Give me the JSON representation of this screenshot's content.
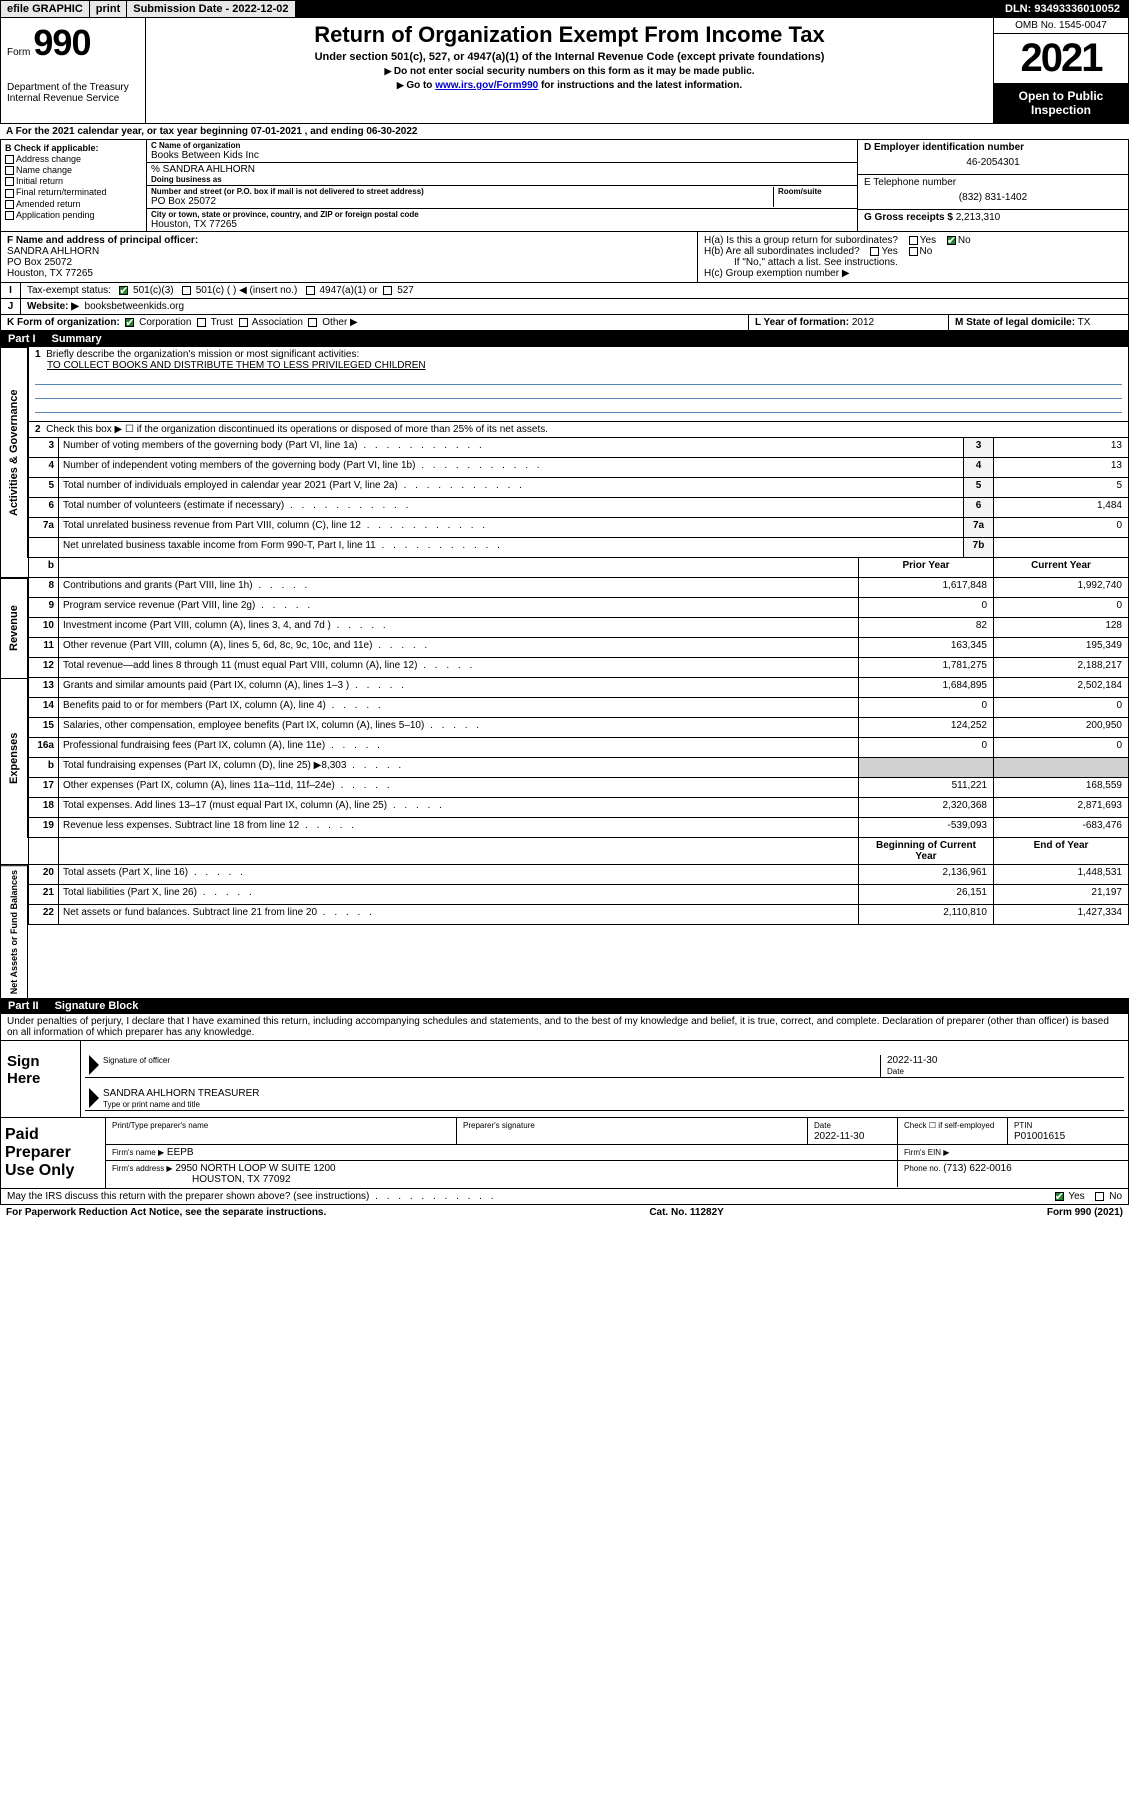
{
  "topbar": {
    "efile": "efile GRAPHIC",
    "print": "print",
    "sub_date_label": "Submission Date - 2022-12-02",
    "dln_label": "DLN: 93493336010052"
  },
  "header": {
    "form_label": "Form",
    "form_number": "990",
    "title": "Return of Organization Exempt From Income Tax",
    "subtitle": "Under section 501(c), 527, or 4947(a)(1) of the Internal Revenue Code (except private foundations)",
    "note1": "Do not enter social security numbers on this form as it may be made public.",
    "note2_pre": "Go to ",
    "note2_link": "www.irs.gov/Form990",
    "note2_post": " for instructions and the latest information.",
    "omb": "OMB No. 1545-0047",
    "year": "2021",
    "open_pub": "Open to Public Inspection",
    "dept": "Department of the Treasury Internal Revenue Service"
  },
  "line_a": "For the 2021 calendar year, or tax year beginning 07-01-2021   , and ending 06-30-2022",
  "section_b": {
    "label": "B Check if applicable:",
    "opts": [
      "Address change",
      "Name change",
      "Initial return",
      "Final return/terminated",
      "Amended return",
      "Application pending"
    ]
  },
  "section_c": {
    "name_label": "C Name of organization",
    "name": "Books Between Kids Inc",
    "care_of": "% SANDRA AHLHORN",
    "dba_label": "Doing business as",
    "addr_label": "Number and street (or P.O. box if mail is not delivered to street address)",
    "room_label": "Room/suite",
    "addr": "PO Box 25072",
    "city_label": "City or town, state or province, country, and ZIP or foreign postal code",
    "city": "Houston, TX  77265"
  },
  "section_d": {
    "ein_label": "D Employer identification number",
    "ein": "46-2054301",
    "phone_label": "E Telephone number",
    "phone": "(832) 831-1402",
    "gross_label": "G Gross receipts $",
    "gross": "2,213,310"
  },
  "section_f": {
    "label": "F  Name and address of principal officer:",
    "name": "SANDRA AHLHORN",
    "addr1": "PO Box 25072",
    "addr2": "Houston, TX  77265"
  },
  "section_h": {
    "ha": "H(a)  Is this a group return for subordinates?",
    "hb": "H(b)  Are all subordinates included?",
    "hb_note": "If \"No,\" attach a list. See instructions.",
    "hc": "H(c)  Group exemption number ▶"
  },
  "section_i": {
    "label": "I",
    "text": "Tax-exempt status:",
    "opts": [
      "501(c)(3)",
      "501(c) (  ) ◀ (insert no.)",
      "4947(a)(1) or",
      "527"
    ]
  },
  "section_j": {
    "label": "J",
    "text": "Website: ▶",
    "value": "booksbetweenkids.org"
  },
  "section_k": {
    "label": "K Form of organization:",
    "opts": [
      "Corporation",
      "Trust",
      "Association",
      "Other ▶"
    ]
  },
  "section_l": {
    "label": "L Year of formation:",
    "value": "2012"
  },
  "section_m": {
    "label": "M State of legal domicile:",
    "value": "TX"
  },
  "part1": {
    "title": "Part I",
    "name": "Summary",
    "line1_label": "1",
    "line1_text": "Briefly describe the organization's mission or most significant activities:",
    "mission": "TO COLLECT BOOKS AND DISTRIBUTE THEM TO LESS PRIVILEGED CHILDREN",
    "line2_label": "2",
    "line2_text": "Check this box ▶ ☐  if the organization discontinued its operations or disposed of more than 25% of its net assets."
  },
  "group_labels": {
    "gov": "Activities & Governance",
    "rev": "Revenue",
    "exp": "Expenses",
    "net": "Net Assets or Fund Balances"
  },
  "gov_lines": [
    {
      "num": "3",
      "desc": "Number of voting members of the governing body (Part VI, line 1a)",
      "box": "3",
      "val": "13"
    },
    {
      "num": "4",
      "desc": "Number of independent voting members of the governing body (Part VI, line 1b)",
      "box": "4",
      "val": "13"
    },
    {
      "num": "5",
      "desc": "Total number of individuals employed in calendar year 2021 (Part V, line 2a)",
      "box": "5",
      "val": "5"
    },
    {
      "num": "6",
      "desc": "Total number of volunteers (estimate if necessary)",
      "box": "6",
      "val": "1,484"
    },
    {
      "num": "7a",
      "desc": "Total unrelated business revenue from Part VIII, column (C), line 12",
      "box": "7a",
      "val": "0"
    },
    {
      "num": "",
      "desc": "Net unrelated business taxable income from Form 990-T, Part I, line 11",
      "box": "7b",
      "val": ""
    }
  ],
  "col_headers": {
    "num": "b",
    "prior": "Prior Year",
    "current": "Current Year"
  },
  "rev_lines": [
    {
      "num": "8",
      "desc": "Contributions and grants (Part VIII, line 1h)",
      "prior": "1,617,848",
      "cur": "1,992,740"
    },
    {
      "num": "9",
      "desc": "Program service revenue (Part VIII, line 2g)",
      "prior": "0",
      "cur": "0"
    },
    {
      "num": "10",
      "desc": "Investment income (Part VIII, column (A), lines 3, 4, and 7d )",
      "prior": "82",
      "cur": "128"
    },
    {
      "num": "11",
      "desc": "Other revenue (Part VIII, column (A), lines 5, 6d, 8c, 9c, 10c, and 11e)",
      "prior": "163,345",
      "cur": "195,349"
    },
    {
      "num": "12",
      "desc": "Total revenue—add lines 8 through 11 (must equal Part VIII, column (A), line 12)",
      "prior": "1,781,275",
      "cur": "2,188,217"
    }
  ],
  "exp_lines": [
    {
      "num": "13",
      "desc": "Grants and similar amounts paid (Part IX, column (A), lines 1–3 )",
      "prior": "1,684,895",
      "cur": "2,502,184"
    },
    {
      "num": "14",
      "desc": "Benefits paid to or for members (Part IX, column (A), line 4)",
      "prior": "0",
      "cur": "0"
    },
    {
      "num": "15",
      "desc": "Salaries, other compensation, employee benefits (Part IX, column (A), lines 5–10)",
      "prior": "124,252",
      "cur": "200,950"
    },
    {
      "num": "16a",
      "desc": "Professional fundraising fees (Part IX, column (A), line 11e)",
      "prior": "0",
      "cur": "0"
    },
    {
      "num": "b",
      "desc": "Total fundraising expenses (Part IX, column (D), line 25) ▶8,303",
      "prior": "SHADE",
      "cur": "SHADE"
    },
    {
      "num": "17",
      "desc": "Other expenses (Part IX, column (A), lines 11a–11d, 11f–24e)",
      "prior": "511,221",
      "cur": "168,559"
    },
    {
      "num": "18",
      "desc": "Total expenses. Add lines 13–17 (must equal Part IX, column (A), line 25)",
      "prior": "2,320,368",
      "cur": "2,871,693"
    },
    {
      "num": "19",
      "desc": "Revenue less expenses. Subtract line 18 from line 12",
      "prior": "-539,093",
      "cur": "-683,476"
    }
  ],
  "net_header": {
    "prior": "Beginning of Current Year",
    "current": "End of Year"
  },
  "net_lines": [
    {
      "num": "20",
      "desc": "Total assets (Part X, line 16)",
      "prior": "2,136,961",
      "cur": "1,448,531"
    },
    {
      "num": "21",
      "desc": "Total liabilities (Part X, line 26)",
      "prior": "26,151",
      "cur": "21,197"
    },
    {
      "num": "22",
      "desc": "Net assets or fund balances. Subtract line 21 from line 20",
      "prior": "2,110,810",
      "cur": "1,427,334"
    }
  ],
  "part2": {
    "title": "Part II",
    "name": "Signature Block",
    "penalties": "Under penalties of perjury, I declare that I have examined this return, including accompanying schedules and statements, and to the best of my knowledge and belief, it is true, correct, and complete. Declaration of preparer (other than officer) is based on all information of which preparer has any knowledge.",
    "sign_here": "Sign Here",
    "sig_of": "Signature of officer",
    "date_label": "Date",
    "date_val": "2022-11-30",
    "name_title": "SANDRA AHLHORN  TREASURER",
    "type_print": "Type or print name and title"
  },
  "prep": {
    "label": "Paid Preparer Use Only",
    "h1": "Print/Type preparer's name",
    "h2": "Preparer's signature",
    "h3": "Date",
    "date": "2022-11-30",
    "h4": "Check ☐ if self-employed",
    "h5": "PTIN",
    "ptin": "P01001615",
    "firm_name_label": "Firm's name    ▶",
    "firm_name": "EEPB",
    "firm_ein_label": "Firm's EIN ▶",
    "firm_addr_label": "Firm's address ▶",
    "firm_addr1": "2950 NORTH LOOP W SUITE 1200",
    "firm_addr2": "HOUSTON, TX  77092",
    "phone_label": "Phone no.",
    "phone": "(713) 622-0016",
    "may_irs": "May the IRS discuss this return with the preparer shown above? (see instructions)"
  },
  "footer": {
    "left": "For Paperwork Reduction Act Notice, see the separate instructions.",
    "center": "Cat. No. 11282Y",
    "right": "Form 990 (2021)"
  },
  "colors": {
    "link": "#0000cc",
    "check_green": "#2e7d32",
    "shade": "#d0d0d0",
    "rule_blue": "#5888b8"
  }
}
